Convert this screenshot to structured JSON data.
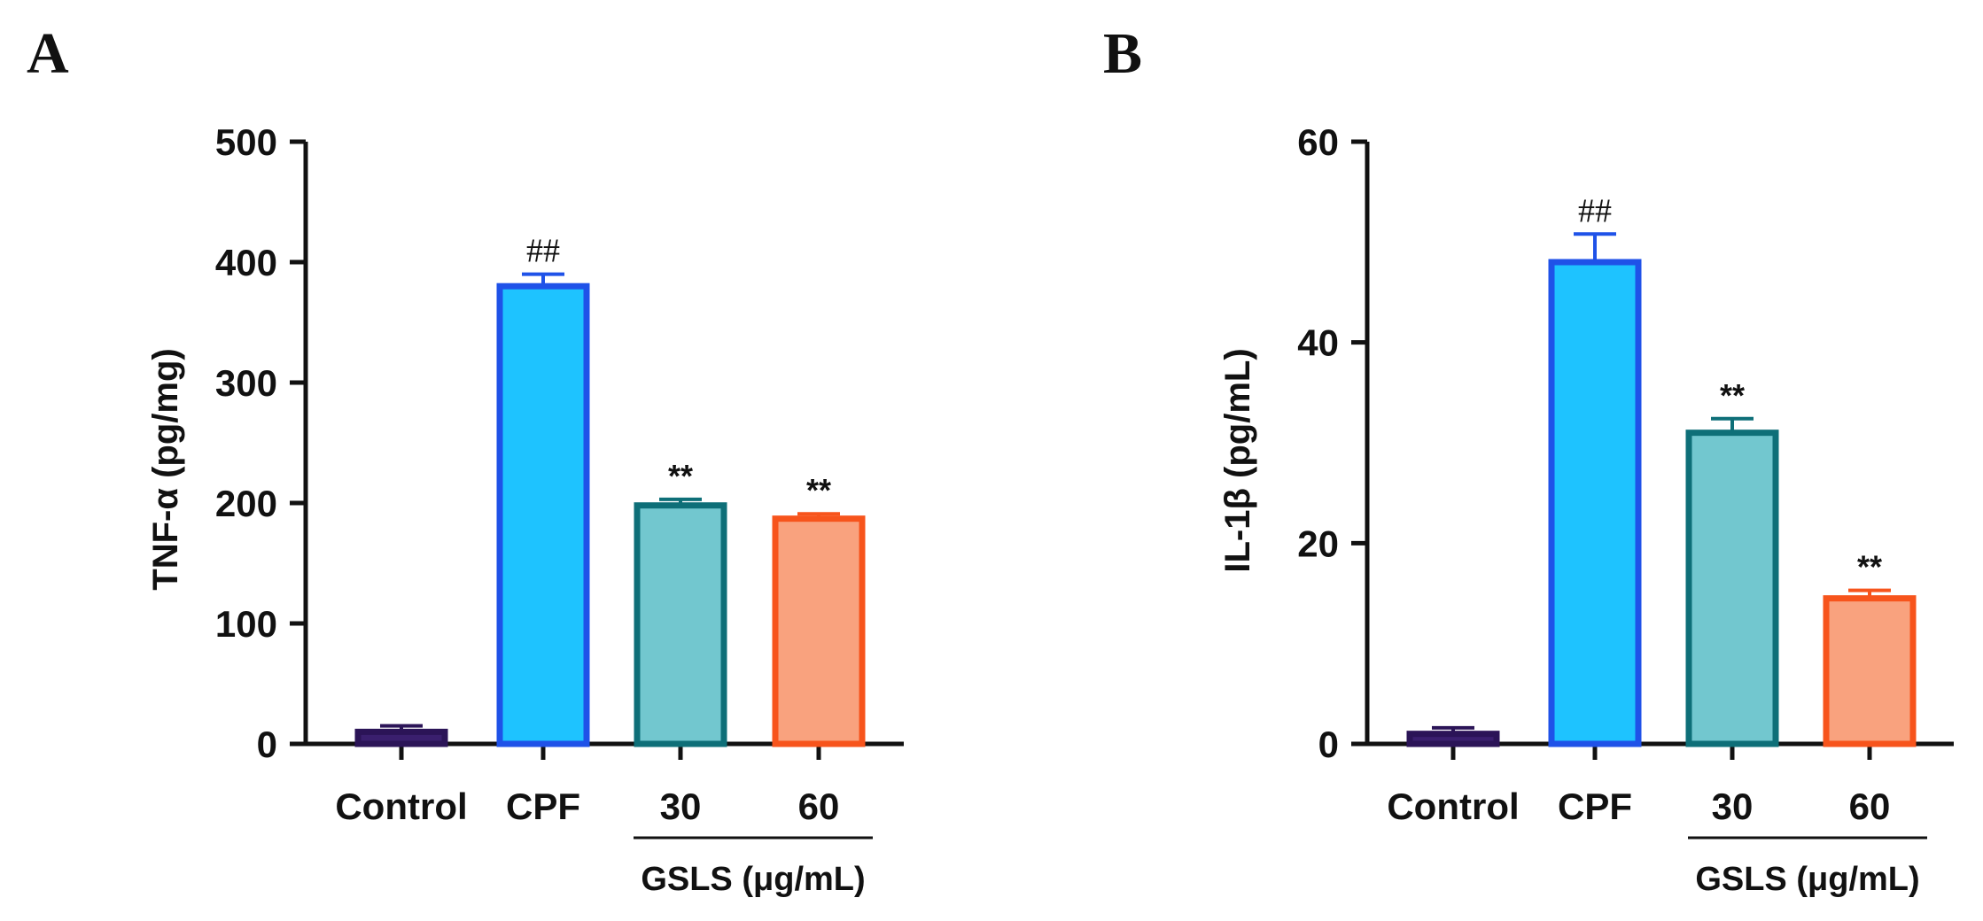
{
  "chart_data": [
    {
      "type": "bar",
      "panel": "A",
      "ylabel": "TNF-α (pg/mg)",
      "ylim": [
        0,
        500
      ],
      "yticks": [
        0,
        100,
        200,
        300,
        400,
        500
      ],
      "categories": [
        "Control",
        "CPF",
        "30",
        "60"
      ],
      "values": [
        10,
        380,
        198,
        187
      ],
      "errors": [
        5,
        10,
        5,
        4
      ],
      "annotations": [
        "",
        "##",
        "**",
        "**"
      ],
      "group_label": "GSLS (μg/mL)",
      "group_categories": [
        "30",
        "60"
      ],
      "colors": {
        "fill": [
          "#3a1f6e",
          "#1ec3ff",
          "#72c7cf",
          "#f9a27e"
        ],
        "stroke": [
          "#2b1457",
          "#1f52e8",
          "#0e6f78",
          "#f7541c"
        ]
      }
    },
    {
      "type": "bar",
      "panel": "B",
      "ylabel": "IL-1β (pg/mL)",
      "ylim": [
        0,
        60
      ],
      "yticks": [
        0,
        20,
        40,
        60
      ],
      "categories": [
        "Control",
        "CPF",
        "30",
        "60"
      ],
      "values": [
        1,
        48,
        31,
        14.5
      ],
      "errors": [
        0.6,
        2.8,
        1.4,
        0.8
      ],
      "annotations": [
        "",
        "##",
        "**",
        "**"
      ],
      "group_label": "GSLS (μg/mL)",
      "group_categories": [
        "30",
        "60"
      ],
      "colors": {
        "fill": [
          "#3a1f6e",
          "#1ec3ff",
          "#72c7cf",
          "#f9a27e"
        ],
        "stroke": [
          "#2b1457",
          "#1f52e8",
          "#0e6f78",
          "#f7541c"
        ]
      }
    }
  ]
}
